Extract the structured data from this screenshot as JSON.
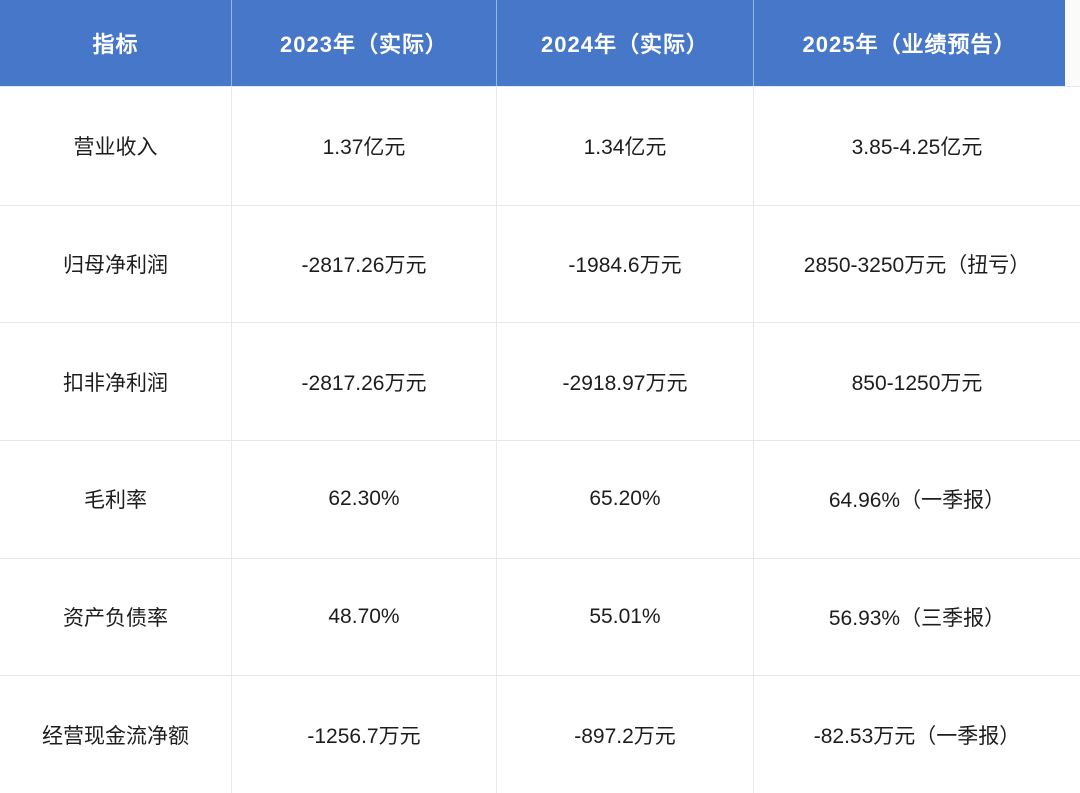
{
  "chart_data": {
    "type": "table",
    "title": "",
    "columns": [
      "指标",
      "2023年（实际）",
      "2024年（实际）",
      "2025年（业绩预告）"
    ],
    "rows": [
      [
        "营业收入",
        "1.37亿元",
        "1.34亿元",
        "3.85-4.25亿元"
      ],
      [
        "归母净利润",
        "-2817.26万元",
        "-1984.6万元",
        "2850-3250万元（扭亏）"
      ],
      [
        "扣非净利润",
        "-2817.26万元",
        "-2918.97万元",
        "850-1250万元"
      ],
      [
        "毛利率",
        "62.30%",
        "65.20%",
        "64.96%（一季报）"
      ],
      [
        "资产负债率",
        "48.70%",
        "55.01%",
        "56.93%（三季报）"
      ],
      [
        "经营现金流净额",
        "-1256.7万元",
        "-897.2万元",
        "-82.53万元（一季报）"
      ]
    ]
  },
  "table": {
    "header": {
      "columns": [
        "指标",
        "2023年（实际）",
        "2024年（实际）",
        "2025年（业绩预告）"
      ]
    },
    "rows": [
      {
        "cells": [
          "营业收入",
          "1.37亿元",
          "1.34亿元",
          "3.85-4.25亿元"
        ]
      },
      {
        "cells": [
          "归母净利润",
          "-2817.26万元",
          "-1984.6万元",
          "2850-3250万元（扭亏）"
        ]
      },
      {
        "cells": [
          "扣非净利润",
          "-2817.26万元",
          "-2918.97万元",
          "850-1250万元"
        ]
      },
      {
        "cells": [
          "毛利率",
          "62.30%",
          "65.20%",
          "64.96%（一季报）"
        ]
      },
      {
        "cells": [
          "资产负债率",
          "48.70%",
          "55.01%",
          "56.93%（三季报）"
        ]
      },
      {
        "cells": [
          "经营现金流净额",
          "-1256.7万元",
          "-897.2万元",
          "-82.53万元（一季报）"
        ]
      }
    ],
    "colors": {
      "header_bg": "#4777C8",
      "header_text": "#FFFFFF",
      "body_text": "#1D1D1F",
      "grid_line": "#E7E7E7",
      "body_bg": "#FFFFFF",
      "page_bg": "#FBFBFA"
    }
  }
}
